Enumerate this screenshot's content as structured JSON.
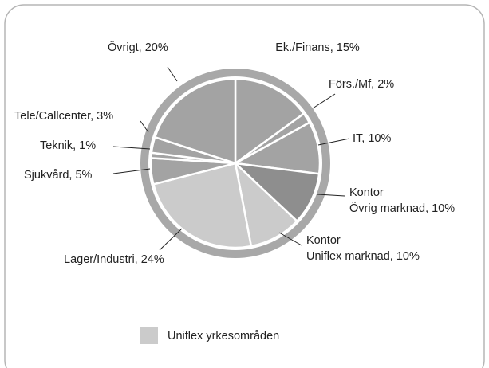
{
  "chart_data": {
    "type": "pie",
    "labels": [
      [
        "Ek./Finans, 15%"
      ],
      [
        "Förs./Mf, 2%"
      ],
      [
        "IT, 10%"
      ],
      [
        "Kontor",
        "Övrig marknad, 10%"
      ],
      [
        "Kontor",
        "Uniflex marknad, 10%"
      ],
      [
        "Lager/Industri, 24%"
      ],
      [
        "Sjukvård, 5%"
      ],
      [
        "Teknik, 1%"
      ],
      [
        "Tele/Callcenter, 3%"
      ],
      [
        "Övrigt, 20%"
      ]
    ],
    "values": [
      15,
      2,
      10,
      10,
      10,
      24,
      5,
      1,
      3,
      20
    ],
    "colors": [
      "#a3a3a3",
      "#a3a3a3",
      "#a3a3a3",
      "#8e8e8e",
      "#cbcbcb",
      "#cbcbcb",
      "#a3a3a3",
      "#a3a3a3",
      "#a3a3a3",
      "#a3a3a3"
    ],
    "legend": {
      "label": "Uniflex yrkesområden",
      "color": "#cbcbcb"
    }
  }
}
